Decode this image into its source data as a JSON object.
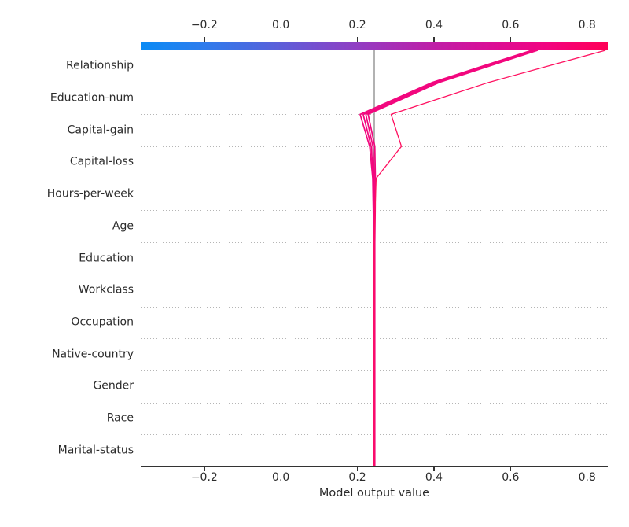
{
  "chart_data": {
    "type": "line",
    "variant": "shap-decision-plot",
    "title": "",
    "xlabel": "Model output value",
    "x_tick_values": [
      -0.2,
      0.0,
      0.2,
      0.4,
      0.6,
      0.8
    ],
    "x_tick_labels": [
      "−0.2",
      "0.0",
      "0.2",
      "0.4",
      "0.6",
      "0.8"
    ],
    "xlim": [
      -0.366,
      0.854
    ],
    "base_value": 0.244,
    "grid": "dotted-horizontal",
    "legend": "none",
    "features_top_to_bottom": [
      "Relationship",
      "Education-num",
      "Capital-gain",
      "Capital-loss",
      "Hours-per-week",
      "Age",
      "Education",
      "Workclass",
      "Occupation",
      "Native-country",
      "Gender",
      "Race",
      "Marital-status"
    ],
    "colors": {
      "base_line": "#999999",
      "axis_text": "#2b2b2b",
      "gridline": "#b5b5b5",
      "colorbar_left": "#0a8bf5",
      "colorbar_right": "#ff0056"
    },
    "colorbar_stops": [
      {
        "pos": 0,
        "color": "#0a8bf5"
      },
      {
        "pos": 12,
        "color": "#2a7eee"
      },
      {
        "pos": 25,
        "color": "#4d68df"
      },
      {
        "pos": 37,
        "color": "#7450d0"
      },
      {
        "pos": 50,
        "color": "#9c36bd"
      },
      {
        "pos": 62,
        "color": "#bd20a8"
      },
      {
        "pos": 75,
        "color": "#da0e96"
      },
      {
        "pos": 87,
        "color": "#f20480"
      },
      {
        "pos": 100,
        "color": "#ff0056"
      }
    ],
    "series": [
      {
        "name": "line-1",
        "color": "#f2077e",
        "width": 1.7,
        "values_bottom_to_top": [
          0.2425,
          0.2425,
          0.2425,
          0.2425,
          0.2425,
          0.2425,
          0.2425,
          0.2425,
          0.2415,
          0.24,
          0.232,
          0.207,
          0.396,
          0.655
        ]
      },
      {
        "name": "line-2",
        "color": "#f2077e",
        "width": 1.7,
        "values_bottom_to_top": [
          0.2435,
          0.2435,
          0.2435,
          0.2435,
          0.2435,
          0.2435,
          0.2435,
          0.2435,
          0.243,
          0.242,
          0.236,
          0.215,
          0.402,
          0.66
        ]
      },
      {
        "name": "line-3",
        "color": "#f2077e",
        "width": 1.7,
        "values_bottom_to_top": [
          0.2445,
          0.2445,
          0.2445,
          0.2445,
          0.2445,
          0.2445,
          0.2445,
          0.2445,
          0.2445,
          0.244,
          0.2405,
          0.222,
          0.408,
          0.666
        ]
      },
      {
        "name": "line-4",
        "color": "#f2077e",
        "width": 1.7,
        "values_bottom_to_top": [
          0.2455,
          0.2455,
          0.2455,
          0.2455,
          0.2455,
          0.2455,
          0.2455,
          0.2455,
          0.2465,
          0.247,
          0.2455,
          0.228,
          0.414,
          0.671
        ]
      },
      {
        "name": "line-5",
        "color": "#ff0f5f",
        "width": 1.3,
        "values_bottom_to_top": [
          0.244,
          0.244,
          0.244,
          0.244,
          0.244,
          0.244,
          0.244,
          0.244,
          0.246,
          0.249,
          0.315,
          0.288,
          0.543,
          0.848
        ]
      }
    ]
  }
}
